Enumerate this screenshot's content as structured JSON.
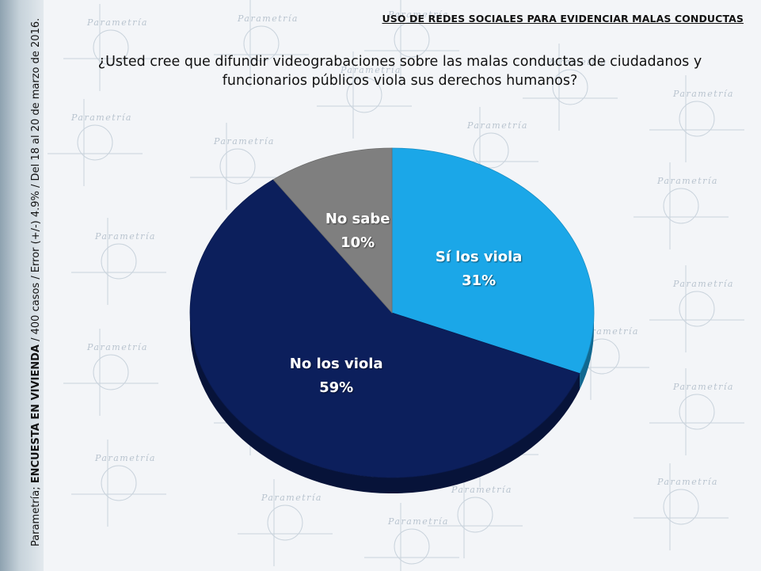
{
  "header": {
    "title": "USO DE REDES SOCIALES PARA EVIDENCIAR MALAS CONDUCTAS"
  },
  "sidebar": {
    "prefix": "Parametría; ",
    "survey": "ENCUESTA EN VIVIENDA",
    "details": " / 400 casos / Error (+/-) 4.9% / Del 18 al 20 de marzo de 2016."
  },
  "background": {
    "watermark": "Parametría"
  },
  "chart_data": {
    "type": "pie",
    "title": "¿Usted cree que difundir videograbaciones sobre las malas conductas de ciudadanos y funcionarios públicos viola sus derechos humanos?",
    "slices": [
      {
        "label": "Sí los viola",
        "value": 31,
        "value_label": "31%",
        "color": "#1ba7e8"
      },
      {
        "label": "No los viola",
        "value": 59,
        "value_label": "59%",
        "color": "#0c1f5c"
      },
      {
        "label": "No sabe",
        "value": 10,
        "value_label": "10%",
        "color": "#7f7f7f"
      }
    ],
    "start_angle_deg": -90,
    "direction": "clockwise",
    "style": "3d"
  }
}
